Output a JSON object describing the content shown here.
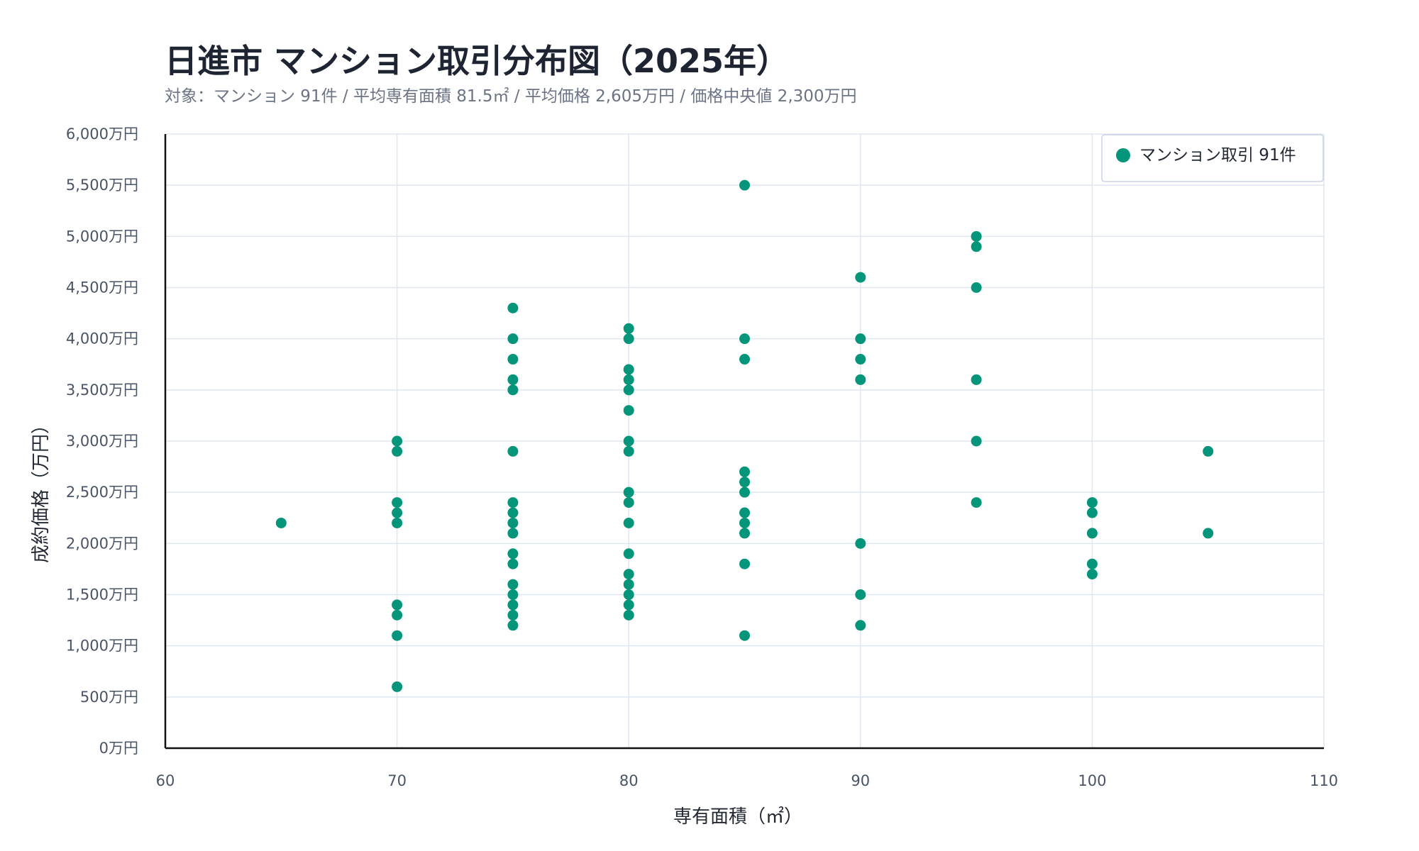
{
  "chart_data": {
    "type": "scatter",
    "title": "日進市 マンション取引分布図（2025年）",
    "subtitle": "対象：マンション 91件 / 平均専有面積 81.5㎡ / 平均価格 2,605万円 / 価格中央値 2,300万円",
    "xlabel": "専有面積（㎡）",
    "ylabel": "成約価格（万円）",
    "xlim": [
      60,
      110
    ],
    "ylim": [
      0,
      6000
    ],
    "x_ticks": [
      60,
      70,
      80,
      90,
      100,
      110
    ],
    "x_tick_labels": [
      "60",
      "70",
      "80",
      "90",
      "100",
      "110"
    ],
    "y_ticks": [
      0,
      500,
      1000,
      1500,
      2000,
      2500,
      3000,
      3500,
      4000,
      4500,
      5000,
      5500,
      6000
    ],
    "y_tick_labels": [
      "0万円",
      "500万円",
      "1,000万円",
      "1,500万円",
      "2,000万円",
      "2,500万円",
      "3,000万円",
      "3,500万円",
      "4,000万円",
      "4,500万円",
      "5,000万円",
      "5,500万円",
      "6,000万円"
    ],
    "grid": true,
    "legend_position": "top-right",
    "series": [
      {
        "name": "マンション取引 91件",
        "color": "#05957a",
        "points": [
          {
            "x": 65,
            "y": 2200
          },
          {
            "x": 70,
            "y": 3000
          },
          {
            "x": 70,
            "y": 2900
          },
          {
            "x": 70,
            "y": 2400
          },
          {
            "x": 70,
            "y": 2300
          },
          {
            "x": 70,
            "y": 2200
          },
          {
            "x": 70,
            "y": 1400
          },
          {
            "x": 70,
            "y": 1300
          },
          {
            "x": 70,
            "y": 1100
          },
          {
            "x": 70,
            "y": 600
          },
          {
            "x": 75,
            "y": 4300
          },
          {
            "x": 75,
            "y": 4000
          },
          {
            "x": 75,
            "y": 3800
          },
          {
            "x": 75,
            "y": 3600
          },
          {
            "x": 75,
            "y": 3500
          },
          {
            "x": 75,
            "y": 2900
          },
          {
            "x": 75,
            "y": 2400
          },
          {
            "x": 75,
            "y": 2300
          },
          {
            "x": 75,
            "y": 2200
          },
          {
            "x": 75,
            "y": 2100
          },
          {
            "x": 75,
            "y": 1900
          },
          {
            "x": 75,
            "y": 1800
          },
          {
            "x": 75,
            "y": 1600
          },
          {
            "x": 75,
            "y": 1500
          },
          {
            "x": 75,
            "y": 1400
          },
          {
            "x": 75,
            "y": 1300
          },
          {
            "x": 75,
            "y": 1200
          },
          {
            "x": 80,
            "y": 4100
          },
          {
            "x": 80,
            "y": 4000
          },
          {
            "x": 80,
            "y": 3700
          },
          {
            "x": 80,
            "y": 3600
          },
          {
            "x": 80,
            "y": 3500
          },
          {
            "x": 80,
            "y": 3300
          },
          {
            "x": 80,
            "y": 3000
          },
          {
            "x": 80,
            "y": 2900
          },
          {
            "x": 80,
            "y": 2500
          },
          {
            "x": 80,
            "y": 2400
          },
          {
            "x": 80,
            "y": 2200
          },
          {
            "x": 80,
            "y": 1900
          },
          {
            "x": 80,
            "y": 1700
          },
          {
            "x": 80,
            "y": 1600
          },
          {
            "x": 80,
            "y": 1500
          },
          {
            "x": 80,
            "y": 1400
          },
          {
            "x": 80,
            "y": 1300
          },
          {
            "x": 85,
            "y": 5500
          },
          {
            "x": 85,
            "y": 4000
          },
          {
            "x": 85,
            "y": 3800
          },
          {
            "x": 85,
            "y": 2700
          },
          {
            "x": 85,
            "y": 2600
          },
          {
            "x": 85,
            "y": 2500
          },
          {
            "x": 85,
            "y": 2300
          },
          {
            "x": 85,
            "y": 2200
          },
          {
            "x": 85,
            "y": 2100
          },
          {
            "x": 85,
            "y": 1800
          },
          {
            "x": 85,
            "y": 1100
          },
          {
            "x": 90,
            "y": 4600
          },
          {
            "x": 90,
            "y": 4000
          },
          {
            "x": 90,
            "y": 3800
          },
          {
            "x": 90,
            "y": 3600
          },
          {
            "x": 90,
            "y": 2000
          },
          {
            "x": 90,
            "y": 1500
          },
          {
            "x": 90,
            "y": 1200
          },
          {
            "x": 95,
            "y": 5000
          },
          {
            "x": 95,
            "y": 4900
          },
          {
            "x": 95,
            "y": 4500
          },
          {
            "x": 95,
            "y": 3600
          },
          {
            "x": 95,
            "y": 3000
          },
          {
            "x": 95,
            "y": 2400
          },
          {
            "x": 100,
            "y": 2400
          },
          {
            "x": 100,
            "y": 2300
          },
          {
            "x": 100,
            "y": 2100
          },
          {
            "x": 100,
            "y": 1800
          },
          {
            "x": 100,
            "y": 1700
          },
          {
            "x": 105,
            "y": 2900
          },
          {
            "x": 105,
            "y": 2100
          }
        ]
      }
    ]
  }
}
